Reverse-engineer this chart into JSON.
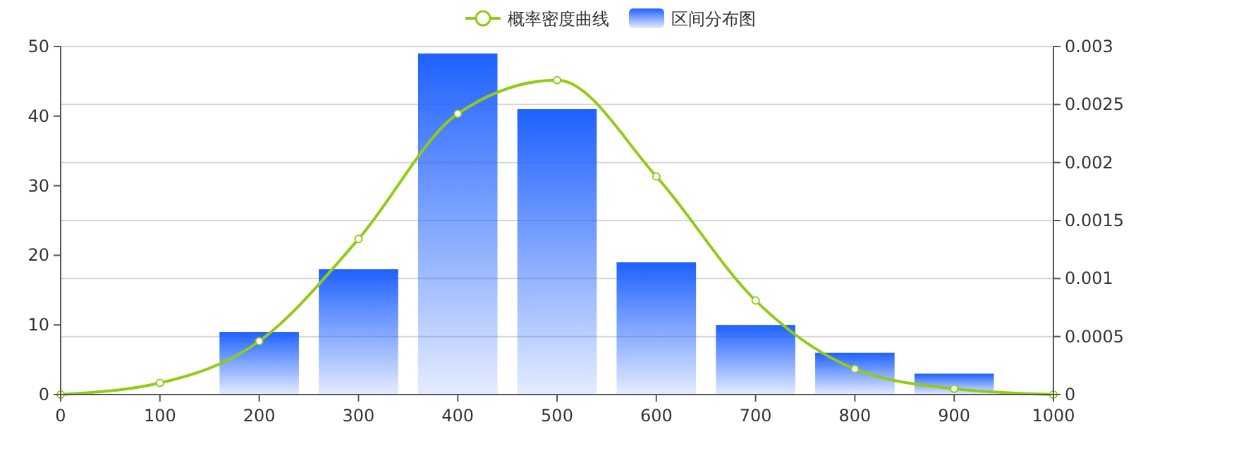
{
  "chart_data": {
    "type": "bar",
    "x": [
      200,
      300,
      400,
      500,
      600,
      700,
      800,
      900
    ],
    "series": [
      {
        "name": "区间分布图",
        "color": "#1f61ff",
        "values": [
          9,
          18,
          49,
          41,
          19,
          10,
          6,
          3
        ]
      },
      {
        "name": "概率密度曲线",
        "type": "line",
        "axis": "y2",
        "color": "#91cc14",
        "x": [
          0,
          100,
          200,
          300,
          400,
          500,
          600,
          700,
          800,
          900,
          1000
        ],
        "values": [
          0,
          0.0001,
          0.00046,
          0.00134,
          0.00242,
          0.00271,
          0.00188,
          0.00081,
          0.00022,
          5e-05,
          0
        ]
      }
    ],
    "xlim": [
      0,
      1000
    ],
    "xticks": [
      0,
      100,
      200,
      300,
      400,
      500,
      600,
      700,
      800,
      900,
      1000
    ],
    "ylim": [
      0,
      50
    ],
    "yticks": [
      0,
      10,
      20,
      30,
      40,
      50
    ],
    "y2lim": [
      0,
      0.003
    ],
    "y2ticks": [
      0,
      0.0005,
      0.001,
      0.0015,
      0.002,
      0.0025,
      0.003
    ],
    "grid": "y2",
    "legend": "top",
    "marker": "circle",
    "line_style": "solid"
  }
}
